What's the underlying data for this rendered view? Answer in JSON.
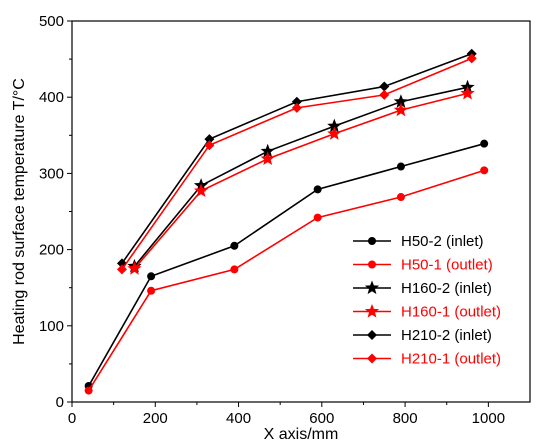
{
  "chart_data": {
    "type": "line",
    "xlabel": "X axis/mm",
    "ylabel": "Heating rod surface temperature T/°C",
    "xlim": [
      0,
      1100
    ],
    "ylim": [
      0,
      500
    ],
    "xticks": [
      0,
      200,
      400,
      600,
      800,
      1000
    ],
    "yticks": [
      0,
      100,
      200,
      300,
      400,
      500
    ],
    "legend_position": "bottom-right",
    "grid": false,
    "series": [
      {
        "name": "H50-2 (inlet)",
        "color": "#000000",
        "marker": "circle",
        "x": [
          40,
          190,
          390,
          590,
          790,
          990
        ],
        "y": [
          21,
          165,
          205,
          279,
          309,
          339
        ]
      },
      {
        "name": "H50-1 (outlet)",
        "color": "#ff0000",
        "marker": "circle",
        "x": [
          40,
          190,
          390,
          590,
          790,
          990
        ],
        "y": [
          15,
          146,
          174,
          242,
          269,
          304
        ]
      },
      {
        "name": "H160-2 (inlet)",
        "color": "#000000",
        "marker": "star",
        "x": [
          150,
          310,
          470,
          630,
          790,
          950
        ],
        "y": [
          178,
          284,
          329,
          362,
          394,
          413
        ]
      },
      {
        "name": "H160-1 (outlet)",
        "color": "#ff0000",
        "marker": "star",
        "x": [
          150,
          310,
          470,
          630,
          790,
          950
        ],
        "y": [
          175,
          277,
          319,
          352,
          383,
          405
        ]
      },
      {
        "name": "H210-2 (inlet)",
        "color": "#000000",
        "marker": "diamond",
        "x": [
          120,
          330,
          540,
          750,
          960
        ],
        "y": [
          182,
          345,
          394,
          414,
          457
        ]
      },
      {
        "name": "H210-1 (outlet)",
        "color": "#ff0000",
        "marker": "diamond",
        "x": [
          120,
          330,
          540,
          750,
          960
        ],
        "y": [
          174,
          337,
          386,
          403,
          451
        ]
      }
    ]
  }
}
